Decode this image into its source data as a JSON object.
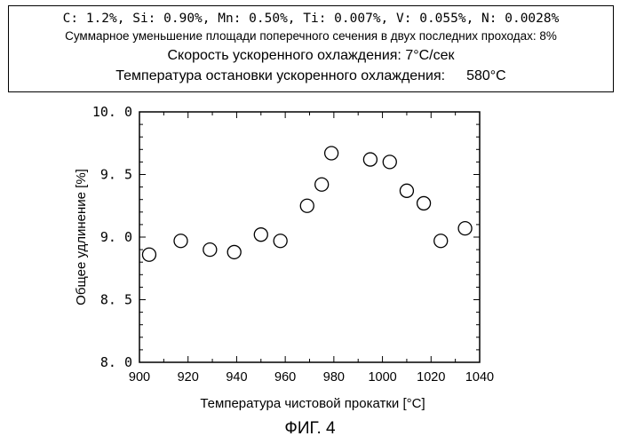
{
  "conditions": {
    "line1": "C: 1.2%, Si: 0.90%, Mn: 0.50%, Ti: 0.007%, V: 0.055%, N: 0.0028%",
    "line2": "Суммарное уменьшение площади поперечного сечения в двух последних проходах: 8%",
    "line3": "Скорость ускоренного охлаждения: 7°C/сек",
    "line4_label": "Температура остановки ускоренного охлаждения:",
    "line4_value": "580°C"
  },
  "figure_label": "ФИГ. 4",
  "chart_data": {
    "type": "scatter",
    "title": "",
    "xlabel": "Температура чистовой прокатки [°C]",
    "ylabel": "Общее удлинение [%]",
    "xlim": [
      900,
      1040
    ],
    "ylim": [
      8.0,
      10.0
    ],
    "x_ticks": [
      "900",
      "920",
      "940",
      "960",
      "980",
      "1000",
      "1020",
      "1040"
    ],
    "y_ticks": [
      "10. 0",
      "9. 5",
      "9. 0",
      "8. 5",
      "8. 0"
    ],
    "grid": false,
    "marker": "open-circle",
    "points": [
      {
        "x": 904,
        "y": 8.86
      },
      {
        "x": 917,
        "y": 8.97
      },
      {
        "x": 929,
        "y": 8.9
      },
      {
        "x": 939,
        "y": 8.88
      },
      {
        "x": 950,
        "y": 9.02
      },
      {
        "x": 958,
        "y": 8.97
      },
      {
        "x": 969,
        "y": 9.25
      },
      {
        "x": 975,
        "y": 9.42
      },
      {
        "x": 979,
        "y": 9.67
      },
      {
        "x": 995,
        "y": 9.62
      },
      {
        "x": 1003,
        "y": 9.6
      },
      {
        "x": 1010,
        "y": 9.37
      },
      {
        "x": 1017,
        "y": 9.27
      },
      {
        "x": 1024,
        "y": 8.97
      },
      {
        "x": 1034,
        "y": 9.07
      }
    ]
  }
}
